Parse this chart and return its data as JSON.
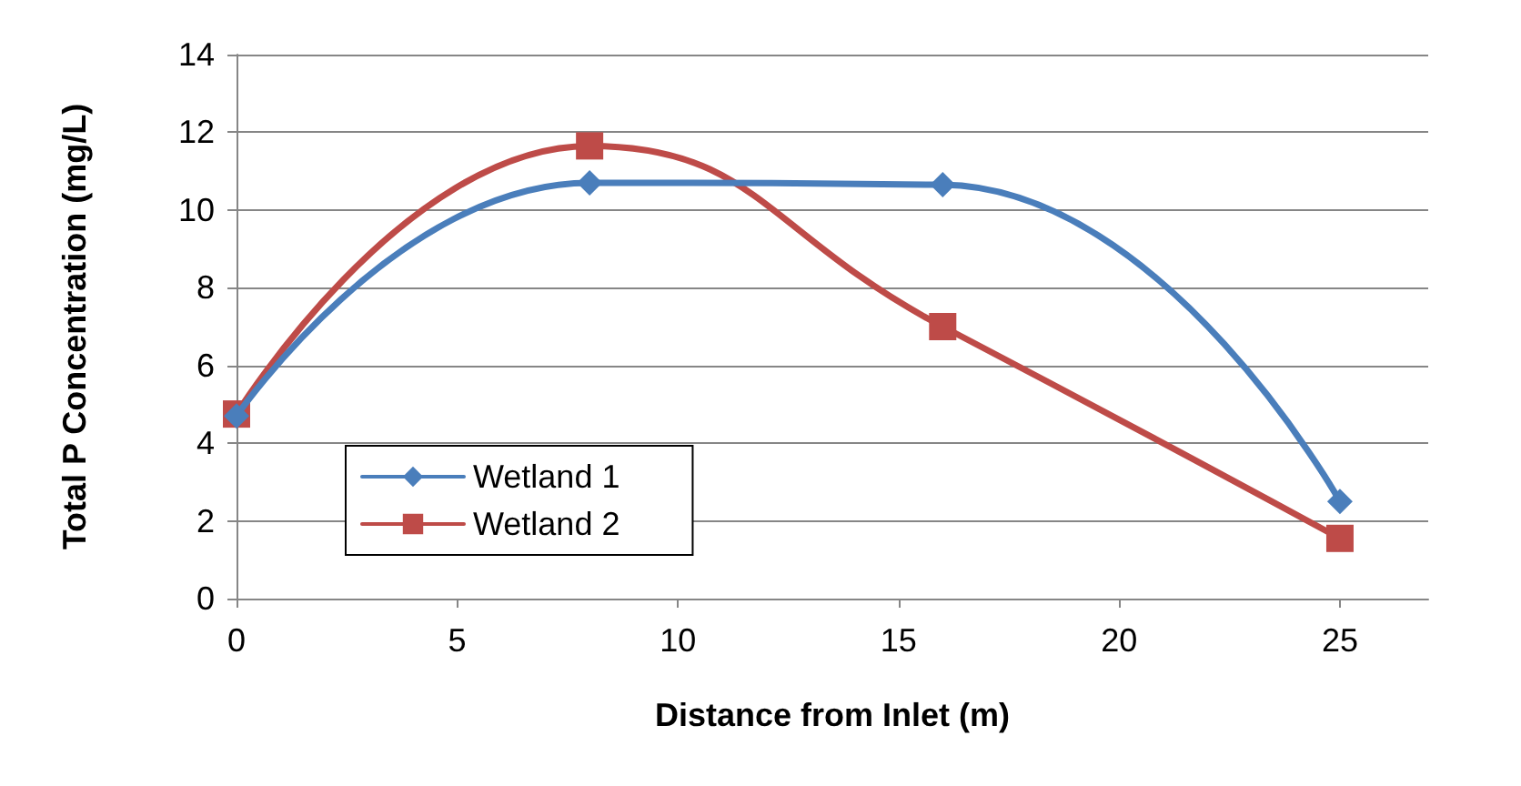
{
  "chart_data": {
    "type": "line",
    "xlabel": "Distance from Inlet (m)",
    "ylabel": "Total P Concentration (mg/L)",
    "x": [
      0,
      8,
      16,
      25
    ],
    "series": [
      {
        "name": "Wetland 1",
        "color": "#4a7ebb",
        "marker": "diamond",
        "values": [
          4.7,
          10.7,
          10.65,
          2.5
        ]
      },
      {
        "name": "Wetland 2",
        "color": "#be4b48",
        "marker": "square",
        "values": [
          4.75,
          11.65,
          7.0,
          1.55
        ]
      }
    ],
    "xlim": [
      0,
      27
    ],
    "xticks": [
      0,
      5,
      10,
      15,
      20,
      25
    ],
    "ylim": [
      0,
      14
    ],
    "yticks": [
      0,
      2,
      4,
      6,
      8,
      10,
      12,
      14
    ],
    "grid": "y",
    "legend": "bottom left",
    "line_style": "solid"
  }
}
